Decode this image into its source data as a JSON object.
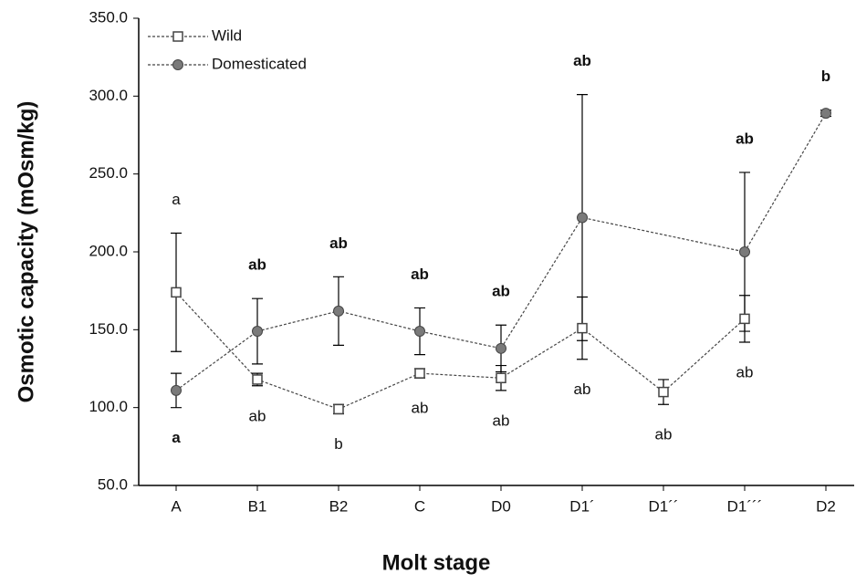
{
  "chart_data": {
    "type": "line",
    "x_label": "Molt stage",
    "y_label": "Osmotic capacity (mOsm/kg)",
    "categories": [
      "A",
      "B1",
      "B2",
      "C",
      "D0",
      "D1´",
      "D1´´",
      "D1´´´",
      "D2"
    ],
    "ylim": [
      50,
      350
    ],
    "yticks": [
      {
        "value": 50,
        "label": "50.0"
      },
      {
        "value": 100,
        "label": "100.0"
      },
      {
        "value": 150,
        "label": "150.0"
      },
      {
        "value": 200,
        "label": "200.0"
      },
      {
        "value": 250,
        "label": "250.0"
      },
      {
        "value": 300,
        "label": "300.0"
      },
      {
        "value": 350,
        "label": "350.0"
      }
    ],
    "legend": "upper left",
    "series": [
      {
        "name": "Wild",
        "color": "#444444",
        "marker": "square",
        "marker_fill": "#ffffff",
        "label_style": "normal",
        "values": [
          174,
          118,
          99,
          122,
          119,
          151,
          110,
          157,
          null
        ],
        "errors": [
          38,
          4,
          3,
          3,
          8,
          20,
          8,
          15,
          null
        ],
        "point_labels": [
          "a",
          "ab",
          "b",
          "ab",
          "ab",
          "ab",
          "ab",
          "ab",
          null
        ]
      },
      {
        "name": "Domesticated",
        "color": "#444444",
        "marker": "circle",
        "marker_fill": "#7a7a7a",
        "label_style": "bold",
        "values": [
          111,
          149,
          162,
          149,
          138,
          222,
          null,
          200,
          289
        ],
        "errors": [
          11,
          21,
          22,
          15,
          15,
          79,
          null,
          51,
          2
        ],
        "point_labels": [
          "a",
          "ab",
          "ab",
          "ab",
          "ab",
          "ab",
          null,
          "ab",
          "b"
        ]
      }
    ]
  }
}
